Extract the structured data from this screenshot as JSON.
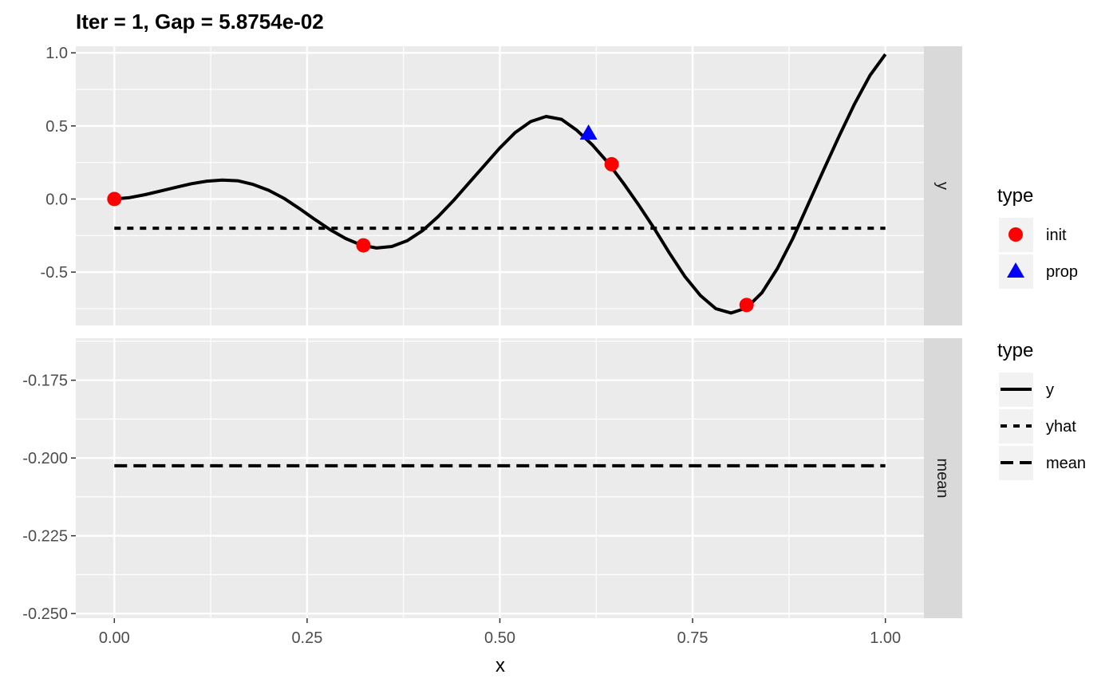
{
  "chart_data": {
    "type": "line",
    "title": "Iter = 1, Gap = 5.8754e-02",
    "xlabel": "x",
    "ylabel": "",
    "xlim": [
      -0.05,
      1.05
    ],
    "x_ticks": [
      "0.00",
      "0.25",
      "0.50",
      "0.75",
      "1.00"
    ],
    "x_tick_values": [
      0,
      0.25,
      0.5,
      0.75,
      1.0
    ],
    "grid": true,
    "legend_position": "right",
    "panels": [
      {
        "strip": "y",
        "ylim": [
          -0.865,
          1.045
        ],
        "y_ticks": [
          "-0.5",
          "0.0",
          "0.5",
          "1.0"
        ],
        "y_tick_values": [
          -0.5,
          0,
          0.5,
          1.0
        ],
        "series": [
          {
            "name": "y",
            "style": "solid",
            "x": [
              0,
              0.02,
              0.04,
              0.06,
              0.08,
              0.1,
              0.12,
              0.14,
              0.16,
              0.18,
              0.2,
              0.22,
              0.24,
              0.26,
              0.28,
              0.3,
              0.32,
              0.34,
              0.36,
              0.38,
              0.4,
              0.42,
              0.44,
              0.46,
              0.48,
              0.5,
              0.52,
              0.54,
              0.56,
              0.58,
              0.6,
              0.62,
              0.64,
              0.66,
              0.68,
              0.7,
              0.72,
              0.74,
              0.76,
              0.78,
              0.8,
              0.82,
              0.84,
              0.86,
              0.88,
              0.9,
              0.92,
              0.94,
              0.96,
              0.98,
              1.0
            ],
            "y": [
              0.0,
              0.01,
              0.03,
              0.055,
              0.08,
              0.105,
              0.122,
              0.13,
              0.125,
              0.1,
              0.06,
              0.005,
              -0.065,
              -0.14,
              -0.21,
              -0.27,
              -0.315,
              -0.335,
              -0.325,
              -0.285,
              -0.215,
              -0.12,
              -0.01,
              0.11,
              0.23,
              0.35,
              0.455,
              0.53,
              0.565,
              0.545,
              0.47,
              0.37,
              0.25,
              0.11,
              -0.04,
              -0.2,
              -0.37,
              -0.53,
              -0.66,
              -0.75,
              -0.78,
              -0.745,
              -0.64,
              -0.475,
              -0.27,
              -0.035,
              0.2,
              0.43,
              0.65,
              0.845,
              0.99
            ]
          },
          {
            "name": "yhat",
            "style": "dotted",
            "x": [
              0,
              1.0
            ],
            "y": [
              -0.2,
              -0.2
            ]
          }
        ],
        "points": [
          {
            "type": "init",
            "x": 0.0,
            "y": 0.0
          },
          {
            "type": "init",
            "x": 0.323,
            "y": -0.317
          },
          {
            "type": "init",
            "x": 0.645,
            "y": 0.238
          },
          {
            "type": "init",
            "x": 0.82,
            "y": -0.725
          },
          {
            "type": "prop",
            "x": 0.615,
            "y": 0.45
          }
        ]
      },
      {
        "strip": "mean",
        "ylim": [
          -0.2515,
          -0.1615
        ],
        "y_ticks": [
          "-0.175",
          "-0.200",
          "-0.225",
          "-0.250"
        ],
        "y_tick_values": [
          -0.175,
          -0.2,
          -0.225,
          -0.25
        ],
        "series": [
          {
            "name": "mean",
            "style": "dashed",
            "x": [
              0,
              1.0
            ],
            "y": [
              -0.2025,
              -0.2025
            ]
          }
        ]
      }
    ],
    "legends": [
      {
        "title": "type",
        "entries": [
          {
            "label": "init",
            "marker": "circle",
            "color": "#ff0000"
          },
          {
            "label": "prop",
            "marker": "triangle",
            "color": "#0000ff"
          }
        ]
      },
      {
        "title": "type",
        "entries": [
          {
            "label": "y",
            "linetype": "solid"
          },
          {
            "label": "yhat",
            "linetype": "dotted"
          },
          {
            "label": "mean",
            "linetype": "dashed"
          }
        ]
      }
    ],
    "colors": {
      "panel_background": "#ebebeb",
      "strip_background": "#d9d9d9",
      "grid": "#ffffff",
      "line": "#000000",
      "init": "#ff0000",
      "prop": "#0000ff"
    }
  }
}
